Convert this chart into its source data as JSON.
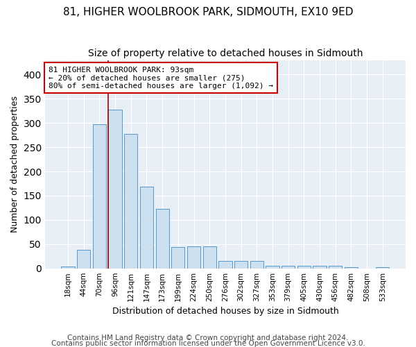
{
  "title1": "81, HIGHER WOOLBROOK PARK, SIDMOUTH, EX10 9ED",
  "title2": "Size of property relative to detached houses in Sidmouth",
  "xlabel": "Distribution of detached houses by size in Sidmouth",
  "ylabel": "Number of detached properties",
  "bar_labels": [
    "18sqm",
    "44sqm",
    "70sqm",
    "96sqm",
    "121sqm",
    "147sqm",
    "173sqm",
    "199sqm",
    "224sqm",
    "250sqm",
    "276sqm",
    "302sqm",
    "327sqm",
    "353sqm",
    "379sqm",
    "405sqm",
    "430sqm",
    "456sqm",
    "482sqm",
    "508sqm",
    "533sqm"
  ],
  "bar_values": [
    4,
    38,
    297,
    327,
    278,
    168,
    123,
    44,
    46,
    46,
    15,
    15,
    15,
    5,
    5,
    5,
    5,
    5,
    3,
    0,
    3
  ],
  "bar_color": "#cce0f0",
  "bar_edge_color": "#5599cc",
  "annotation_line1": "81 HIGHER WOOLBROOK PARK: 93sqm",
  "annotation_line2": "← 20% of detached houses are smaller (275)",
  "annotation_line3": "80% of semi-detached houses are larger (1,092) →",
  "vline_color": "#aa0000",
  "vline_x": 2.575,
  "footnote1": "Contains HM Land Registry data © Crown copyright and database right 2024.",
  "footnote2": "Contains public sector information licensed under the Open Government Licence v3.0.",
  "ylim": [
    0,
    430
  ],
  "background_color": "#e8eef5",
  "title_fontsize": 11,
  "subtitle_fontsize": 10,
  "axis_label_fontsize": 9,
  "tick_fontsize": 7.5,
  "footnote_fontsize": 7.5,
  "annotation_fontsize": 8
}
